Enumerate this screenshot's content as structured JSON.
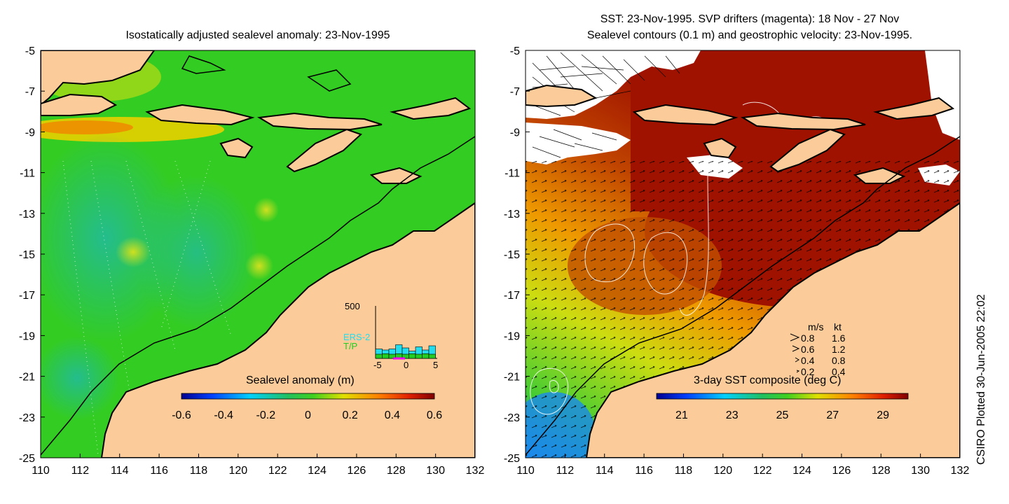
{
  "left_map": {
    "title": "Isostatically adjusted sealevel anomaly: 23-Nov-1995",
    "colorbar": {
      "label": "Sealevel anomaly (m)",
      "ticks": [
        "-0.6",
        "-0.4",
        "-0.2",
        "0",
        "0.2",
        "0.4",
        "0.6"
      ],
      "range": [
        -0.6,
        0.6
      ]
    },
    "inset": {
      "ymax_label": "500",
      "series": [
        "ERS-2",
        "T/P"
      ],
      "series_colors": {
        "ERS-2": "#22ddee",
        "T/P": "#22cc22"
      },
      "x_ticks": [
        "-5",
        "0",
        "5"
      ],
      "bars_ers2": [
        90,
        80,
        90,
        130,
        100,
        70,
        110,
        80,
        120
      ],
      "bars_tp": [
        40,
        45,
        40,
        45,
        40,
        45,
        40,
        45,
        40
      ]
    }
  },
  "right_map": {
    "title_line1": "SST: 23-Nov-1995. SVP drifters (magenta): 18 Nov - 27 Nov",
    "title_line2": "Sealevel contours (0.1 m) and geostrophic velocity: 23-Nov-1995.",
    "colorbar": {
      "label": "3-day SST composite (deg C)",
      "ticks": [
        "21",
        "23",
        "25",
        "27",
        "29"
      ],
      "range": [
        20,
        30
      ]
    },
    "velocity_key": {
      "header_ms": "m/s",
      "header_kt": "kt",
      "rows": [
        {
          "ms": "0.8",
          "kt": "1.6"
        },
        {
          "ms": "0.6",
          "kt": "1.2"
        },
        {
          "ms": "0.4",
          "kt": "0.8"
        },
        {
          "ms": "0.2",
          "kt": "0.4"
        }
      ]
    }
  },
  "axes": {
    "x_ticks": [
      "110",
      "112",
      "114",
      "116",
      "118",
      "120",
      "122",
      "124",
      "126",
      "128",
      "130",
      "132"
    ],
    "y_ticks": [
      "-5",
      "-7",
      "-9",
      "-11",
      "-13",
      "-15",
      "-17",
      "-19",
      "-21",
      "-23",
      "-25"
    ],
    "lon_range": [
      110,
      132
    ],
    "lat_range": [
      -25,
      -5
    ]
  },
  "side_label": "CSIRO Plotted 30-Jun-2005 22:02",
  "colors": {
    "land": "#fbcc9a",
    "sla_sea": "#33cc22",
    "sst_warm": "#aa1100"
  }
}
